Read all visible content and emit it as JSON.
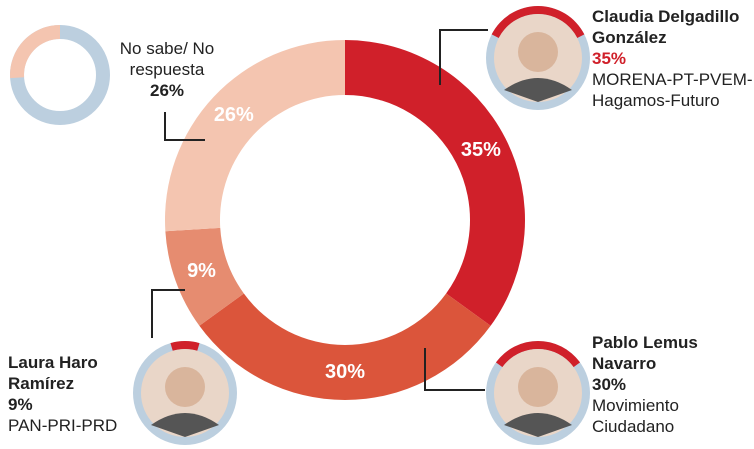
{
  "chart_data": {
    "type": "donut",
    "categories": [
      "Claudia Delgadillo González",
      "Pablo Lemus Navarro",
      "Laura Haro Ramírez",
      "No sabe/ No respuesta"
    ],
    "values": [
      35,
      30,
      9,
      26
    ],
    "value_labels": [
      "35%",
      "30%",
      "9%",
      "26%"
    ],
    "colors": [
      "#d0202a",
      "#db553b",
      "#e68c70",
      "#f4c5b0"
    ],
    "parties": [
      "MORENA-PT-PVEM-Hagamos-Futuro",
      "Movimiento Ciudadano",
      "PAN-PRI-PRD",
      null
    ]
  }
}
